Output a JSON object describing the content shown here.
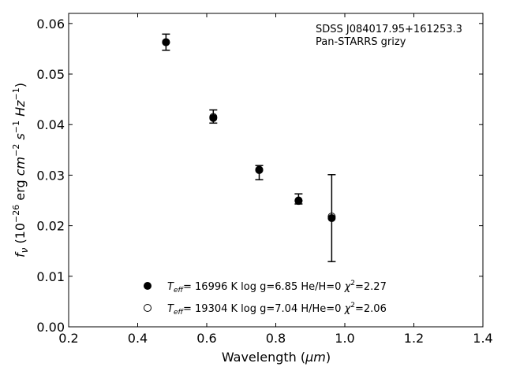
{
  "chart_data": {
    "type": "scatter",
    "annotations": [
      "SDSS J084017.95+161253.3",
      "Pan-STARRS grizy"
    ],
    "xlabel": "Wavelength",
    "xlabel_unit": "μm",
    "ylabel": "f_ν (10^-26 erg cm^-2 s^-1 Hz^-1)",
    "xlim": [
      0.2,
      1.4
    ],
    "ylim": [
      0.0,
      0.062
    ],
    "xticks": [
      0.2,
      0.4,
      0.6,
      0.8,
      1.0,
      1.2,
      1.4
    ],
    "xtick_labels": [
      "0.2",
      "0.4",
      "0.6",
      "0.8",
      "1.0",
      "1.2",
      "1.4"
    ],
    "yticks": [
      0.0,
      0.01,
      0.02,
      0.03,
      0.04,
      0.05,
      0.06
    ],
    "ytick_labels": [
      "0.00",
      "0.01",
      "0.02",
      "0.03",
      "0.04",
      "0.05",
      "0.06"
    ],
    "grid": false,
    "legend_position": "lower-center",
    "series": [
      {
        "name": "T_eff= 16996 K  log g=6.85  He/H=0  χ²=2.27",
        "marker": "filled-circle",
        "color": "#000000",
        "x": [
          0.482,
          0.619,
          0.752,
          0.866,
          0.962
        ],
        "y": [
          0.0563,
          0.0413,
          0.031,
          0.0249,
          0.0215
        ]
      },
      {
        "name": "T_eff= 19304 K  log g=7.04  H/He=0  χ²=2.06",
        "marker": "open-circle",
        "color": "#000000",
        "x": [
          0.482,
          0.619,
          0.752,
          0.866,
          0.962
        ],
        "y": [
          0.0563,
          0.0415,
          0.0311,
          0.025,
          0.0218
        ]
      }
    ],
    "observed": {
      "name": "Pan-STARRS grizy photometry",
      "x": [
        0.482,
        0.619,
        0.752,
        0.866,
        0.962
      ],
      "y": [
        0.0563,
        0.0416,
        0.0305,
        0.0253,
        0.0215
      ],
      "yerr": [
        0.0016,
        0.0013,
        0.0014,
        0.001,
        0.0086
      ]
    }
  }
}
